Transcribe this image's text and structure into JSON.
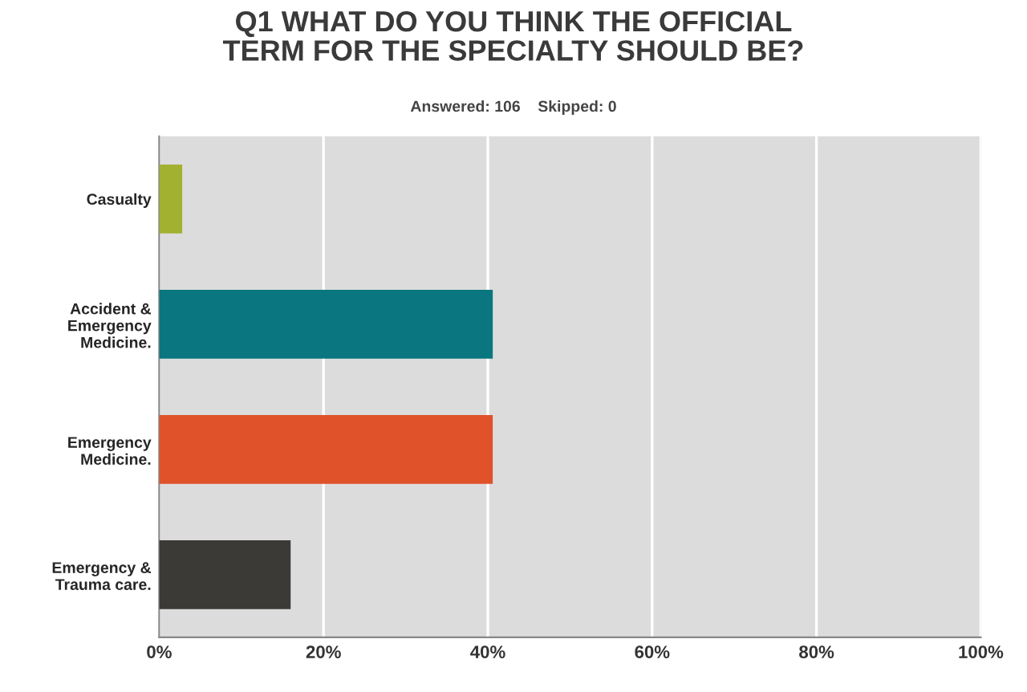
{
  "chart_data": {
    "type": "bar",
    "orientation": "horizontal",
    "title": "Q1 WHAT DO YOU THINK THE OFFICIAL\nTERM FOR THE SPECIALTY SHOULD BE?",
    "subtitle": "Answered: 106    Skipped: 0",
    "categories": [
      "Casualty",
      "Accident &\nEmergency\nMedicine.",
      "Emergency\nMedicine.",
      "Emergency &\nTrauma care."
    ],
    "values": [
      2.8,
      40.6,
      40.6,
      16.0
    ],
    "colors": [
      "#a2b130",
      "#0a7680",
      "#e0522a",
      "#3b3a36"
    ],
    "xlim": [
      0,
      100
    ],
    "xticks": [
      {
        "value": 0,
        "label": "0%"
      },
      {
        "value": 20,
        "label": "20%"
      },
      {
        "value": 40,
        "label": "40%"
      },
      {
        "value": 60,
        "label": "60%"
      },
      {
        "value": 80,
        "label": "80%"
      },
      {
        "value": 100,
        "label": "100%"
      }
    ],
    "grid": "x"
  }
}
